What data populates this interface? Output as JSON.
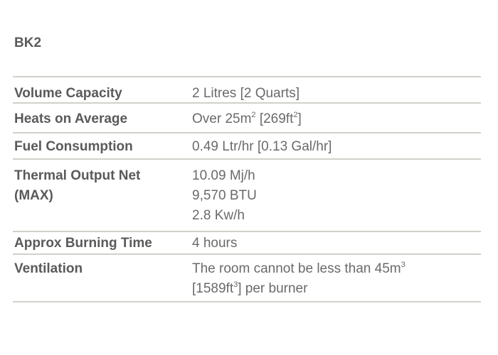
{
  "model": "BK2",
  "specs": {
    "volume": {
      "label": "Volume Capacity",
      "value": "2 Litres [2 Quarts]"
    },
    "heats": {
      "label": "Heats on Average",
      "value_prefix": "Over 25m",
      "value_sup1": "2",
      "value_mid": " [269ft",
      "value_sup2": "2",
      "value_suffix": "]"
    },
    "fuel": {
      "label": "Fuel Consumption",
      "value": "0.49 Ltr/hr [0.13 Gal/hr]"
    },
    "thermal": {
      "label_line1": "Thermal Output Net",
      "label_line2": "(MAX)",
      "value_line1": "10.09 Mj/h",
      "value_line2": "9,570 BTU",
      "value_line3": "2.8 Kw/h"
    },
    "burning": {
      "label": "Approx Burning Time",
      "value": "4 hours"
    },
    "ventilation": {
      "label": "Ventilation",
      "line1_text": "The room cannot be less than 45m",
      "line1_sup": "3",
      "line2_prefix": "[1589ft",
      "line2_sup": "3",
      "line2_suffix": "] per burner"
    }
  }
}
